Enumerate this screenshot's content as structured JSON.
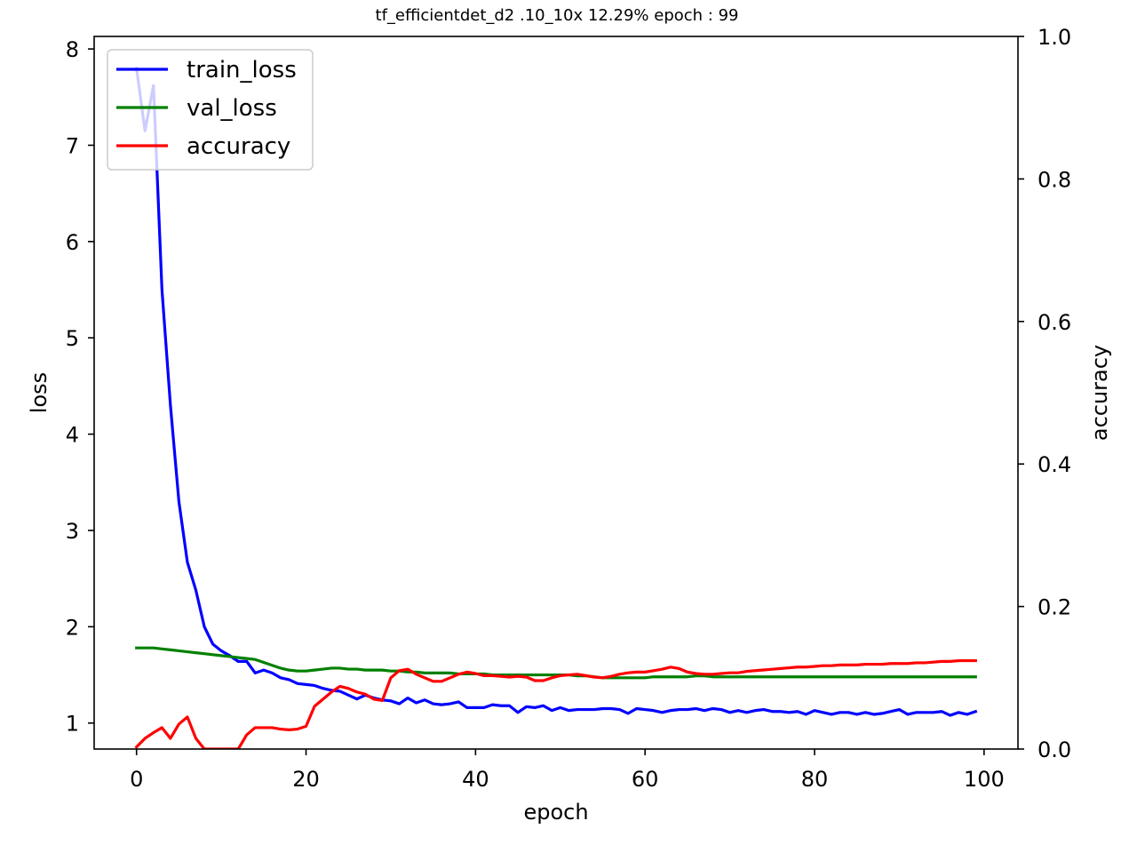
{
  "chart_data": {
    "type": "line",
    "title": "tf_efficientdet_d2          .10_10x  12.29% epoch : 99",
    "xlabel": "epoch",
    "ylabel_left": "loss",
    "ylabel_right": "accuracy",
    "xlim": [
      -5,
      104
    ],
    "ylim_left": [
      0.73,
      8.13
    ],
    "ylim_right": [
      0.0,
      1.0
    ],
    "xticks": [
      0,
      20,
      40,
      60,
      80,
      100
    ],
    "yticks_left": [
      1,
      2,
      3,
      4,
      5,
      6,
      7,
      8
    ],
    "yticks_right": [
      0.0,
      0.2,
      0.4,
      0.6,
      0.8,
      1.0
    ],
    "legend_position": "top-left",
    "grid": false,
    "series": [
      {
        "name": "train_loss",
        "axis": "left",
        "color": "#0000ff",
        "x": [
          0,
          1,
          2,
          3,
          4,
          5,
          6,
          7,
          8,
          9,
          10,
          11,
          12,
          13,
          14,
          15,
          16,
          17,
          18,
          19,
          20,
          21,
          22,
          23,
          24,
          25,
          26,
          27,
          28,
          29,
          30,
          31,
          32,
          33,
          34,
          35,
          36,
          37,
          38,
          39,
          40,
          41,
          42,
          43,
          44,
          45,
          46,
          47,
          48,
          49,
          50,
          51,
          52,
          53,
          54,
          55,
          56,
          57,
          58,
          59,
          60,
          61,
          62,
          63,
          64,
          65,
          66,
          67,
          68,
          69,
          70,
          71,
          72,
          73,
          74,
          75,
          76,
          77,
          78,
          79,
          80,
          81,
          82,
          83,
          84,
          85,
          86,
          87,
          88,
          89,
          90,
          91,
          92,
          93,
          94,
          95,
          96,
          97,
          98,
          99
        ],
        "values": [
          7.8,
          7.15,
          7.62,
          5.5,
          4.3,
          3.3,
          2.67,
          2.38,
          2.0,
          1.82,
          1.75,
          1.7,
          1.64,
          1.64,
          1.52,
          1.55,
          1.52,
          1.47,
          1.45,
          1.41,
          1.4,
          1.39,
          1.36,
          1.34,
          1.33,
          1.29,
          1.25,
          1.29,
          1.26,
          1.24,
          1.23,
          1.2,
          1.26,
          1.21,
          1.24,
          1.2,
          1.19,
          1.2,
          1.22,
          1.16,
          1.16,
          1.16,
          1.19,
          1.18,
          1.18,
          1.11,
          1.17,
          1.16,
          1.18,
          1.13,
          1.16,
          1.13,
          1.14,
          1.14,
          1.14,
          1.15,
          1.15,
          1.14,
          1.1,
          1.15,
          1.14,
          1.13,
          1.11,
          1.13,
          1.14,
          1.14,
          1.15,
          1.13,
          1.15,
          1.14,
          1.11,
          1.13,
          1.11,
          1.13,
          1.14,
          1.12,
          1.12,
          1.11,
          1.12,
          1.09,
          1.13,
          1.11,
          1.09,
          1.11,
          1.11,
          1.09,
          1.11,
          1.09,
          1.1,
          1.12,
          1.14,
          1.09,
          1.11,
          1.11,
          1.11,
          1.12,
          1.08,
          1.11,
          1.09,
          1.12
        ]
      },
      {
        "name": "val_loss",
        "axis": "left",
        "color": "#008000",
        "x": [
          0,
          1,
          2,
          3,
          4,
          5,
          6,
          7,
          8,
          9,
          10,
          11,
          12,
          13,
          14,
          15,
          16,
          17,
          18,
          19,
          20,
          21,
          22,
          23,
          24,
          25,
          26,
          27,
          28,
          29,
          30,
          31,
          32,
          33,
          34,
          35,
          36,
          37,
          38,
          39,
          40,
          41,
          42,
          43,
          44,
          45,
          46,
          47,
          48,
          49,
          50,
          51,
          52,
          53,
          54,
          55,
          56,
          57,
          58,
          59,
          60,
          61,
          62,
          63,
          64,
          65,
          66,
          67,
          68,
          69,
          70,
          71,
          72,
          73,
          74,
          75,
          76,
          77,
          78,
          79,
          80,
          81,
          82,
          83,
          84,
          85,
          86,
          87,
          88,
          89,
          90,
          91,
          92,
          93,
          94,
          95,
          96,
          97,
          98,
          99
        ],
        "values": [
          1.78,
          1.78,
          1.78,
          1.77,
          1.76,
          1.75,
          1.74,
          1.73,
          1.72,
          1.71,
          1.7,
          1.69,
          1.68,
          1.67,
          1.66,
          1.63,
          1.6,
          1.57,
          1.55,
          1.54,
          1.54,
          1.55,
          1.56,
          1.57,
          1.57,
          1.56,
          1.56,
          1.55,
          1.55,
          1.55,
          1.54,
          1.54,
          1.53,
          1.53,
          1.52,
          1.52,
          1.52,
          1.52,
          1.51,
          1.51,
          1.51,
          1.51,
          1.5,
          1.5,
          1.5,
          1.5,
          1.5,
          1.5,
          1.5,
          1.5,
          1.5,
          1.5,
          1.49,
          1.49,
          1.48,
          1.47,
          1.47,
          1.47,
          1.47,
          1.47,
          1.47,
          1.48,
          1.48,
          1.48,
          1.48,
          1.48,
          1.49,
          1.49,
          1.48,
          1.48,
          1.48,
          1.48,
          1.48,
          1.48,
          1.48,
          1.48,
          1.48,
          1.48,
          1.48,
          1.48,
          1.48,
          1.48,
          1.48,
          1.48,
          1.48,
          1.48,
          1.48,
          1.48,
          1.48,
          1.48,
          1.48,
          1.48,
          1.48,
          1.48,
          1.48,
          1.48,
          1.48,
          1.48,
          1.48,
          1.48
        ]
      },
      {
        "name": "accuracy",
        "axis": "right",
        "color": "#ff0000",
        "x": [
          0,
          1,
          2,
          3,
          4,
          5,
          6,
          7,
          8,
          9,
          10,
          11,
          12,
          13,
          14,
          15,
          16,
          17,
          18,
          19,
          20,
          21,
          22,
          23,
          24,
          25,
          26,
          27,
          28,
          29,
          30,
          31,
          32,
          33,
          34,
          35,
          36,
          37,
          38,
          39,
          40,
          41,
          42,
          43,
          44,
          45,
          46,
          47,
          48,
          49,
          50,
          51,
          52,
          53,
          54,
          55,
          56,
          57,
          58,
          59,
          60,
          61,
          62,
          63,
          64,
          65,
          66,
          67,
          68,
          69,
          70,
          71,
          72,
          73,
          74,
          75,
          76,
          77,
          78,
          79,
          80,
          81,
          82,
          83,
          84,
          85,
          86,
          87,
          88,
          89,
          90,
          91,
          92,
          93,
          94,
          95,
          96,
          97,
          98,
          99
        ],
        "values": [
          0.003,
          0.015,
          0.023,
          0.03,
          0.015,
          0.035,
          0.045,
          0.015,
          0.0,
          0.0,
          0.0,
          0.0,
          0.0,
          0.02,
          0.03,
          0.03,
          0.03,
          0.028,
          0.027,
          0.028,
          0.032,
          0.06,
          0.07,
          0.08,
          0.088,
          0.085,
          0.08,
          0.077,
          0.07,
          0.068,
          0.1,
          0.11,
          0.112,
          0.105,
          0.1,
          0.095,
          0.095,
          0.1,
          0.105,
          0.108,
          0.106,
          0.103,
          0.103,
          0.102,
          0.101,
          0.102,
          0.101,
          0.096,
          0.096,
          0.1,
          0.103,
          0.104,
          0.105,
          0.103,
          0.101,
          0.1,
          0.102,
          0.105,
          0.107,
          0.108,
          0.108,
          0.11,
          0.112,
          0.115,
          0.113,
          0.108,
          0.106,
          0.105,
          0.105,
          0.106,
          0.107,
          0.107,
          0.109,
          0.11,
          0.111,
          0.112,
          0.113,
          0.114,
          0.115,
          0.115,
          0.116,
          0.117,
          0.117,
          0.118,
          0.118,
          0.118,
          0.119,
          0.119,
          0.119,
          0.12,
          0.12,
          0.12,
          0.121,
          0.121,
          0.122,
          0.123,
          0.123,
          0.124,
          0.124,
          0.124
        ]
      }
    ]
  }
}
